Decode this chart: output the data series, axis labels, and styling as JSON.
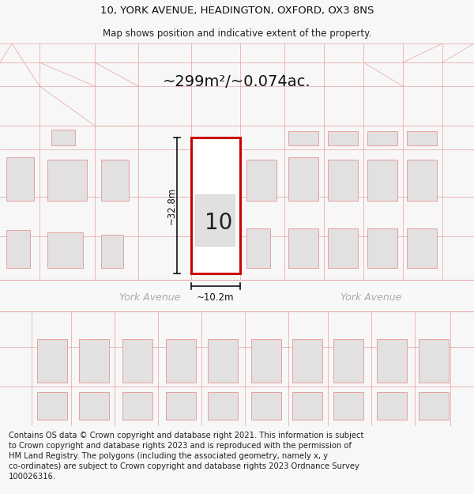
{
  "title_line1": "10, YORK AVENUE, HEADINGTON, OXFORD, OX3 8NS",
  "title_line2": "Map shows position and indicative extent of the property.",
  "area_label": "~299m²/~0.074ac.",
  "width_label": "~10.2m",
  "height_label": "~32.8m",
  "property_number": "10",
  "road_name_center": "York Avenue",
  "road_name_right": "York Avenue",
  "footer_text": "Contains OS data © Crown copyright and database right 2021. This information is subject\nto Crown copyright and database rights 2023 and is reproduced with the permission of\nHM Land Registry. The polygons (including the associated geometry, namely x, y\nco-ordinates) are subject to Crown copyright and database rights 2023 Ordnance Survey\n100026316.",
  "bg_color": "#f7f7f7",
  "map_bg": "#f0eeee",
  "road_color": "#f5f3f3",
  "building_fill": "#e2e0e0",
  "building_edge": "#e8a0a0",
  "plot_outline_edge": "#e8a0a0",
  "plot_fill": "#ffffff",
  "plot_edge": "#cc0000",
  "dim_line_color": "#111111",
  "title_fontsize": 9.5,
  "subtitle_fontsize": 8.5,
  "area_fontsize": 14,
  "number_fontsize": 20,
  "road_label_fontsize": 9,
  "dim_fontsize": 8.5,
  "footer_fontsize": 7.2
}
